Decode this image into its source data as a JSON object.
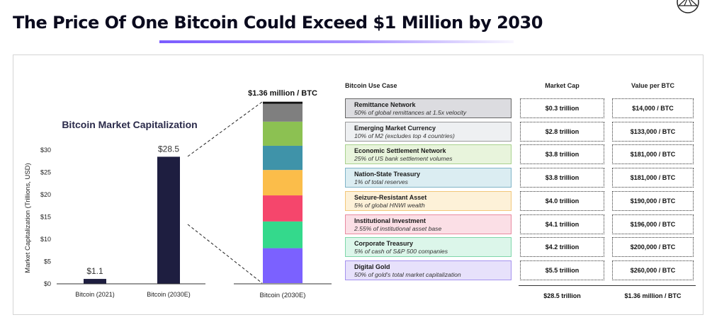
{
  "title": "The Price Of One Bitcoin Could Exceed $1 Million by 2030",
  "chart_data": [
    {
      "type": "bar",
      "title": "Bitcoin Market Capitalization",
      "ylabel": "Market Capitalization (Trillions, USD)",
      "xlabel": "",
      "categories": [
        "Bitcoin (2021)",
        "Bitcoin (2030E)"
      ],
      "values": [
        1.1,
        28.5
      ],
      "data_labels": [
        "$1.1",
        "$28.5"
      ],
      "ylim": [
        0,
        30
      ],
      "yticks": [
        0,
        5,
        10,
        15,
        20,
        25,
        30
      ],
      "ytick_labels": [
        "$0",
        "$5",
        "$10",
        "$15",
        "$20",
        "$25",
        "$30"
      ],
      "bar_color": "#1e1e40",
      "grid": false
    },
    {
      "type": "bar",
      "stacked": true,
      "title": "$1.36 million / BTC",
      "category": "Bitcoin (2030E)",
      "segments": [
        {
          "use_case": "Digital Gold",
          "value": 5.5,
          "color": "#7b61ff"
        },
        {
          "use_case": "Corporate Treasury",
          "value": 4.2,
          "color": "#34d98c"
        },
        {
          "use_case": "Institutional Investment",
          "value": 4.1,
          "color": "#f5466c"
        },
        {
          "use_case": "Seizure-Resistant Asset",
          "value": 4.0,
          "color": "#fbbd4a"
        },
        {
          "use_case": "Nation-State Treasury",
          "value": 3.8,
          "color": "#3f93a9"
        },
        {
          "use_case": "Economic Settlement Network",
          "value": 3.8,
          "color": "#8cc152"
        },
        {
          "use_case": "Emerging Market Currency",
          "value": 2.8,
          "color": "#7f7f7f"
        },
        {
          "use_case": "Remittance Network",
          "value": 0.3,
          "color": "#111111"
        }
      ]
    }
  ],
  "table": {
    "headers": {
      "use_case": "Bitcoin Use Case",
      "market_cap": "Market Cap",
      "value_per_btc": "Value per BTC"
    },
    "rows": [
      {
        "name": "Remittance Network",
        "desc": "50% of global remittances at 1.5x velocity",
        "market_cap": "$0.3 trillion",
        "value": "$14,000 / BTC",
        "fill": "#dcdce0",
        "border": "#666666"
      },
      {
        "name": "Emerging Market Currency",
        "desc": "10% of M2 (excludes top 4 countries)",
        "market_cap": "$2.8 trillion",
        "value": "$133,000 / BTC",
        "fill": "#eef0f2",
        "border": "#9a9a9a"
      },
      {
        "name": "Economic Settlement Network",
        "desc": "25% of US bank settlement volumes",
        "market_cap": "$3.8 trillion",
        "value": "$181,000 / BTC",
        "fill": "#e8f4dc",
        "border": "#a9d18e"
      },
      {
        "name": "Nation-State Treasury",
        "desc": "1% of total reserves",
        "market_cap": "$3.8 trillion",
        "value": "$181,000 / BTC",
        "fill": "#dbedf2",
        "border": "#7fb3c7"
      },
      {
        "name": "Seizure-Resistant Asset",
        "desc": "5% of global HNWI wealth",
        "market_cap": "$4.0 trillion",
        "value": "$190,000 / BTC",
        "fill": "#fdf1d8",
        "border": "#f2c77a"
      },
      {
        "name": "Institutional Investment",
        "desc": "2.55% of institutional asset base",
        "market_cap": "$4.1 trillion",
        "value": "$196,000 / BTC",
        "fill": "#fbdfe6",
        "border": "#e88aa0"
      },
      {
        "name": "Corporate Treasury",
        "desc": "5% of cash of S&P 500 companies",
        "market_cap": "$4.2 trillion",
        "value": "$200,000 / BTC",
        "fill": "#dcf6ea",
        "border": "#7fd6aa"
      },
      {
        "name": "Digital Gold",
        "desc": "50% of gold's total market capitalization",
        "market_cap": "$5.5 trillion",
        "value": "$260,000 / BTC",
        "fill": "#e7e1fb",
        "border": "#a592ee"
      }
    ],
    "totals": {
      "market_cap": "$28.5 trillion",
      "value": "$1.36 million / BTC"
    }
  },
  "icons": {
    "corner_logo": "diamond-logo-icon"
  }
}
